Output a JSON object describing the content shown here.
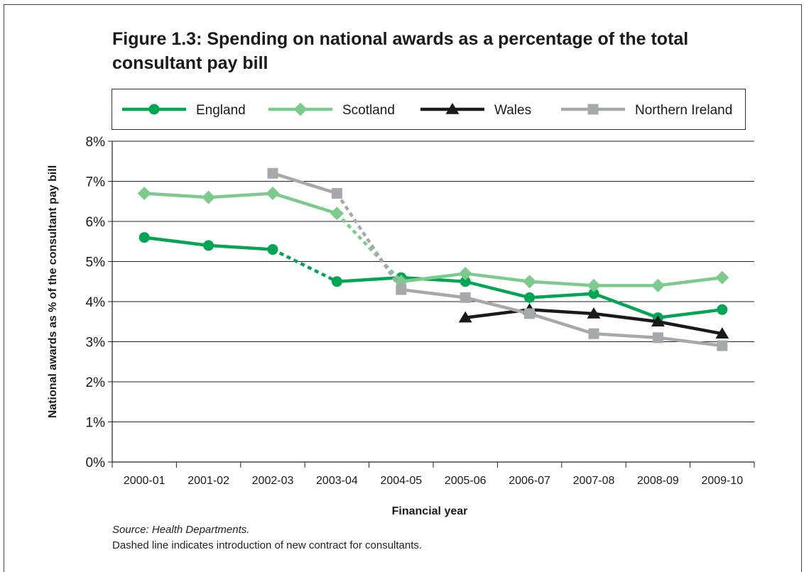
{
  "figure": {
    "title": "Figure 1.3: Spending on national awards as a percentage of the total consultant pay bill",
    "source": "Source: Health Departments.",
    "note": "Dashed line indicates introduction of new contract for consultants."
  },
  "chart_data": {
    "type": "line",
    "title": "Figure 1.3: Spending on national awards as a percentage of the total consultant pay bill",
    "xlabel": "Financial year",
    "ylabel": "National awards as % of the consultant pay bill",
    "categories": [
      "2000-01",
      "2001-02",
      "2002-03",
      "2003-04",
      "2004-05",
      "2005-06",
      "2006-07",
      "2007-08",
      "2008-09",
      "2009-10"
    ],
    "ylim": [
      0,
      8
    ],
    "yticks": [
      "0%",
      "1%",
      "2%",
      "3%",
      "4%",
      "5%",
      "6%",
      "7%",
      "8%"
    ],
    "grid": "horizontal",
    "legend_position": "top",
    "series": [
      {
        "name": "England",
        "color": "#00a651",
        "marker": "circle",
        "values": [
          5.6,
          5.4,
          5.3,
          4.5,
          4.6,
          4.5,
          4.1,
          4.2,
          3.6,
          3.8
        ],
        "dashed_segments": [
          [
            2,
            3
          ]
        ]
      },
      {
        "name": "Scotland",
        "color": "#7ccb8d",
        "marker": "diamond",
        "values": [
          6.7,
          6.6,
          6.7,
          6.2,
          4.5,
          4.7,
          4.5,
          4.4,
          4.4,
          4.6
        ],
        "dashed_segments": [
          [
            3,
            4
          ]
        ]
      },
      {
        "name": "Wales",
        "color": "#1a1a1a",
        "marker": "triangle",
        "values": [
          null,
          null,
          null,
          null,
          null,
          3.6,
          3.8,
          3.7,
          3.5,
          3.2
        ],
        "dashed_segments": []
      },
      {
        "name": "Northern Ireland",
        "color": "#a6a8ab",
        "marker": "square",
        "values": [
          null,
          null,
          7.2,
          6.7,
          4.3,
          4.1,
          3.7,
          3.2,
          3.1,
          2.9
        ],
        "dashed_segments": [
          [
            3,
            4
          ]
        ]
      }
    ]
  }
}
